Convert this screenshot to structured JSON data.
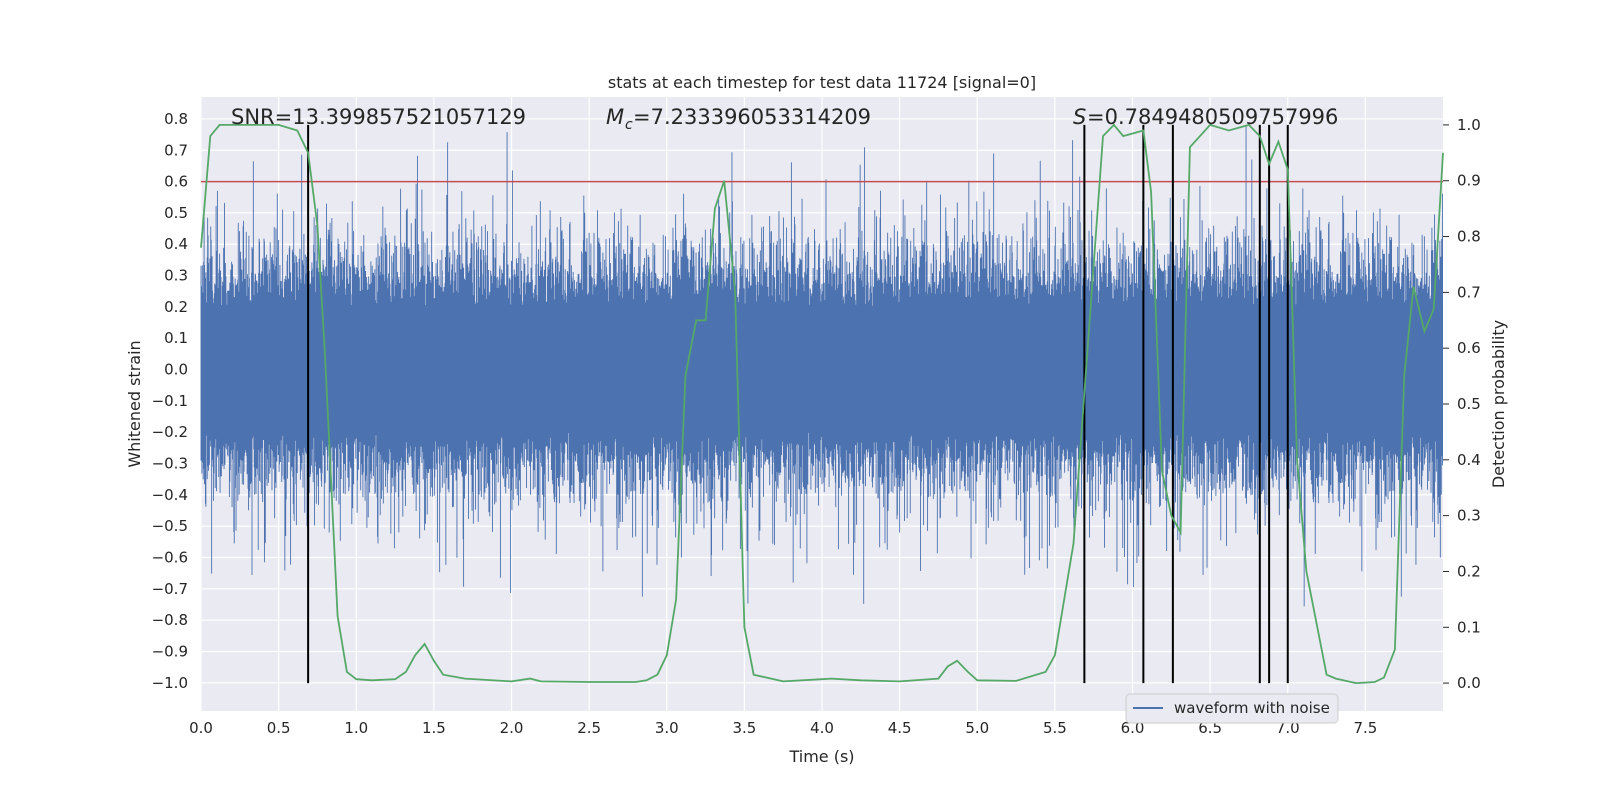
{
  "chart_data": {
    "type": "line",
    "title": "stats at each timestep for test data 11724 [signal=0]",
    "xlabel": "Time (s)",
    "ylabel_left": "Whitened strain",
    "ylabel_right": "Detection probability",
    "xlim": [
      0.0,
      8.0
    ],
    "ylim_left": [
      -1.09,
      0.87
    ],
    "ylim_right": [
      -0.05,
      1.05
    ],
    "x_ticks": [
      "0.0",
      "0.5",
      "1.0",
      "1.5",
      "2.0",
      "2.5",
      "3.0",
      "3.5",
      "4.0",
      "4.5",
      "5.0",
      "5.5",
      "6.0",
      "6.5",
      "7.0",
      "7.5"
    ],
    "y_left_ticks": [
      "0.8",
      "0.7",
      "0.6",
      "0.5",
      "0.4",
      "0.3",
      "0.2",
      "0.1",
      "0.0",
      "-0.1",
      "-0.2",
      "-0.3",
      "-0.4",
      "-0.5",
      "-0.6",
      "-0.7",
      "-0.8",
      "-0.9",
      "-1.0"
    ],
    "y_right_ticks": [
      "1.0",
      "0.9",
      "0.8",
      "0.7",
      "0.6",
      "0.5",
      "0.4",
      "0.3",
      "0.2",
      "0.1",
      "0.0"
    ],
    "annotations": {
      "snr": "SNR=13.399857521057129",
      "mc": "=7.233396053314209",
      "mc_symbol": "M",
      "mc_sub": "c",
      "s": "=0.7849480509757996",
      "s_symbol": "S"
    },
    "threshold": 0.6,
    "event_lines": [
      0.69,
      5.69,
      6.07,
      6.26,
      6.82,
      6.88,
      7.0
    ],
    "legend": [
      "waveform with noise"
    ],
    "legend_loc": "lower-right",
    "colors": {
      "waveform": "#4c72b0",
      "probability": "#55a868",
      "threshold": "#c44e52",
      "events": "#000000"
    },
    "series": [
      {
        "name": "Detection probability",
        "axis": "right",
        "x": [
          0.0,
          0.06,
          0.12,
          0.25,
          0.5,
          0.62,
          0.69,
          0.75,
          0.8,
          0.88,
          0.94,
          1.0,
          1.1,
          1.25,
          1.32,
          1.38,
          1.44,
          1.5,
          1.56,
          1.7,
          2.0,
          2.12,
          2.19,
          2.5,
          2.8,
          2.87,
          2.94,
          3.0,
          3.06,
          3.12,
          3.19,
          3.25,
          3.31,
          3.37,
          3.44,
          3.5,
          3.56,
          3.75,
          4.0,
          4.06,
          4.25,
          4.5,
          4.75,
          4.81,
          4.87,
          4.94,
          5.0,
          5.25,
          5.44,
          5.5,
          5.56,
          5.62,
          5.69,
          5.75,
          5.81,
          5.88,
          5.94,
          6.07,
          6.12,
          6.19,
          6.25,
          6.31,
          6.37,
          6.5,
          6.62,
          6.75,
          6.82,
          6.88,
          6.94,
          7.0,
          7.06,
          7.12,
          7.25,
          7.31,
          7.44,
          7.56,
          7.62,
          7.69,
          7.75,
          7.81,
          7.88,
          7.94,
          8.0
        ],
        "values": [
          0.78,
          0.98,
          1.0,
          1.0,
          1.0,
          0.99,
          0.95,
          0.82,
          0.58,
          0.12,
          0.02,
          0.007,
          0.005,
          0.007,
          0.02,
          0.05,
          0.07,
          0.04,
          0.015,
          0.008,
          0.003,
          0.008,
          0.003,
          0.002,
          0.002,
          0.005,
          0.015,
          0.05,
          0.15,
          0.55,
          0.65,
          0.65,
          0.85,
          0.9,
          0.7,
          0.1,
          0.015,
          0.003,
          0.007,
          0.008,
          0.005,
          0.003,
          0.008,
          0.03,
          0.04,
          0.02,
          0.005,
          0.004,
          0.02,
          0.05,
          0.15,
          0.25,
          0.52,
          0.75,
          0.98,
          1.0,
          0.98,
          0.99,
          0.88,
          0.38,
          0.3,
          0.27,
          0.96,
          1.0,
          0.99,
          1.0,
          0.98,
          0.93,
          0.97,
          0.92,
          0.4,
          0.2,
          0.015,
          0.008,
          0.0,
          0.002,
          0.01,
          0.06,
          0.55,
          0.71,
          0.63,
          0.67,
          0.95
        ]
      }
    ]
  }
}
